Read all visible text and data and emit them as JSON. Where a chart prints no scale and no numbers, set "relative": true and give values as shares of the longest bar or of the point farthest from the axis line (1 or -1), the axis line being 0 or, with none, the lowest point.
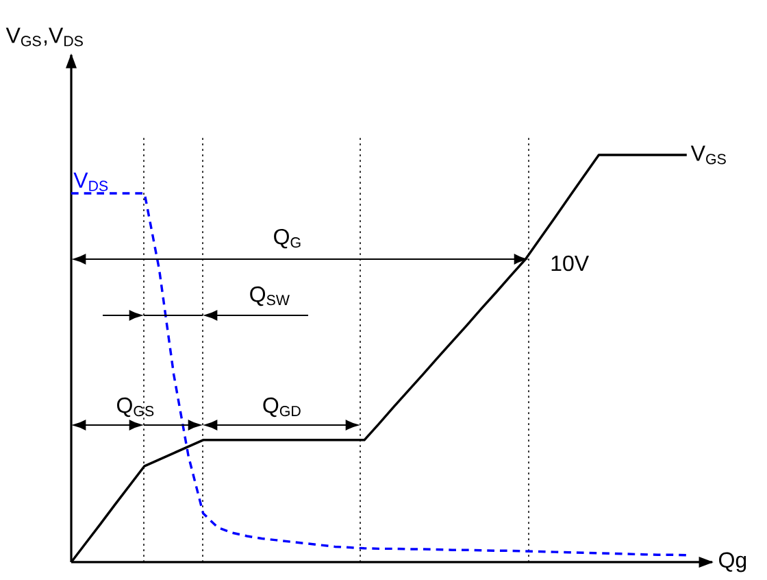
{
  "chart_data": {
    "type": "line",
    "relative": true,
    "xlabel": "Qg",
    "ylabel": "V$_{GS}$,V$_{DS}$",
    "tick_labels": false,
    "marker": "none",
    "categories": [
      null,
      null,
      null,
      null,
      null,
      null,
      null,
      null,
      null,
      null,
      null,
      null,
      null,
      null,
      null,
      null,
      null,
      null,
      null,
      null,
      null,
      null,
      null,
      null,
      null,
      null,
      null,
      null,
      null,
      null,
      null,
      null,
      null,
      null,
      null,
      null,
      null,
      null,
      null,
      null,
      null,
      null,
      null
    ],
    "series": [
      {
        "name": "V$_{DS}$",
        "color": "#0000ff",
        "line_style": "dashed",
        "values": [
          0.906,
          0.906,
          0.906,
          0.906,
          0.906,
          0.906,
          0.72,
          0.46,
          0.26,
          0.12,
          0.085,
          0.072,
          0.064,
          0.058,
          0.054,
          0.05,
          0.046,
          0.042,
          0.038,
          0.036,
          0.034,
          0.033,
          0.033,
          0.032,
          0.032,
          0.031,
          0.03,
          0.03,
          0.029,
          0.028,
          0.028,
          0.027,
          0.026,
          0.025,
          0.024,
          0.023,
          0.022,
          0.021,
          0.02,
          0.019,
          0.018,
          0.018,
          0.017
        ]
      },
      {
        "name": "V$_{GS}$",
        "color": "#000000",
        "line_style": "solid",
        "values": [
          0,
          0.047,
          0.094,
          0.142,
          0.189,
          0.236,
          0.252,
          0.268,
          0.284,
          0.3,
          0.3,
          0.3,
          0.3,
          0.3,
          0.3,
          0.3,
          0.3,
          0.3,
          0.3,
          0.3,
          0.3,
          0.34,
          0.381,
          0.421,
          0.461,
          0.502,
          0.542,
          0.582,
          0.623,
          0.663,
          0.704,
          0.744,
          0.795,
          0.846,
          0.898,
          0.949,
          1,
          1,
          1,
          1,
          1,
          1,
          1
        ]
      }
    ],
    "annotations": [
      "Q$_{G}$",
      "Q$_{SW}$",
      "Q$_{GS}$",
      "Q$_{GD}$",
      "10V"
    ]
  }
}
